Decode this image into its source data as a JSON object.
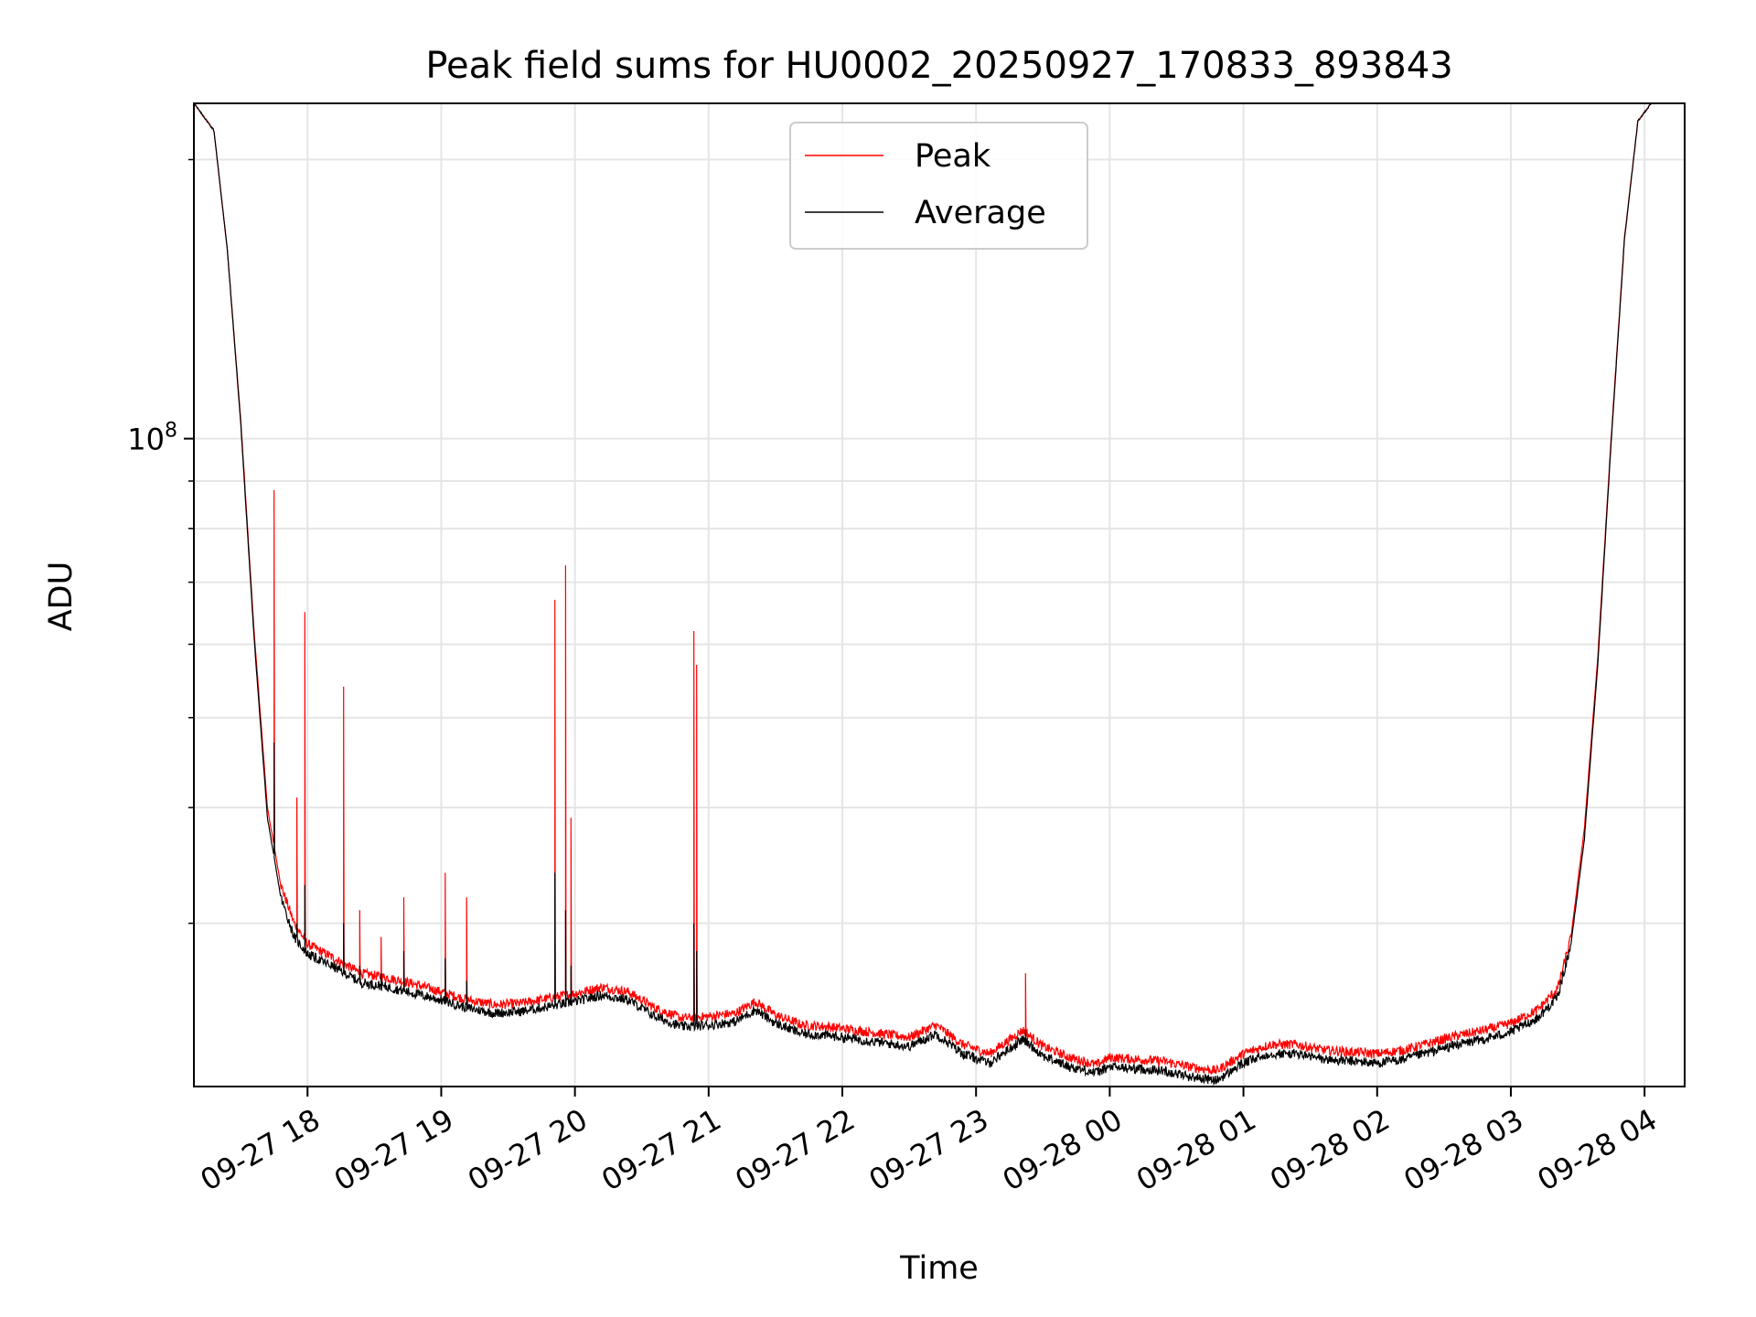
{
  "chart_data": {
    "type": "line",
    "title": "Peak field sums for HU0002_20250927_170833_893843",
    "xlabel": "Time",
    "ylabel": "ADU",
    "yscale": "log",
    "ylim": [
      20000000,
      230000000
    ],
    "xlim": [
      17.15,
      28.3
    ],
    "grid": true,
    "legend_position": "top-center",
    "y_major_ticks": [
      {
        "value": 100000000,
        "base": "10",
        "exp": "8"
      }
    ],
    "y_minor_ticks": [
      30000000,
      40000000,
      50000000,
      60000000,
      70000000,
      80000000,
      90000000,
      200000000
    ],
    "x_ticks": [
      {
        "value": 18,
        "label": "09-27 18"
      },
      {
        "value": 19,
        "label": "09-27 19"
      },
      {
        "value": 20,
        "label": "09-27 20"
      },
      {
        "value": 21,
        "label": "09-27 21"
      },
      {
        "value": 22,
        "label": "09-27 22"
      },
      {
        "value": 23,
        "label": "09-27 23"
      },
      {
        "value": 24,
        "label": "09-28 00"
      },
      {
        "value": 25,
        "label": "09-28 01"
      },
      {
        "value": 26,
        "label": "09-28 02"
      },
      {
        "value": 27,
        "label": "09-28 03"
      },
      {
        "value": 28,
        "label": "09-28 04"
      }
    ],
    "x": [
      17.15,
      17.3,
      17.4,
      17.5,
      17.6,
      17.7,
      17.8,
      17.9,
      18.0,
      18.2,
      18.4,
      18.6,
      18.8,
      19.0,
      19.2,
      19.4,
      19.6,
      19.8,
      20.0,
      20.2,
      20.4,
      20.6,
      20.8,
      21.0,
      21.2,
      21.35,
      21.5,
      21.7,
      21.9,
      22.1,
      22.3,
      22.5,
      22.7,
      22.9,
      23.1,
      23.35,
      23.5,
      23.7,
      23.9,
      24.0,
      24.2,
      24.4,
      24.6,
      24.8,
      25.0,
      25.2,
      25.4,
      25.6,
      25.8,
      26.0,
      26.2,
      26.4,
      26.6,
      26.8,
      27.0,
      27.2,
      27.35,
      27.45,
      27.55,
      27.65,
      27.75,
      27.85,
      27.95,
      28.05
    ],
    "series": [
      {
        "name": "Peak",
        "color": "#ff0000",
        "values": [
          230000000,
          215000000,
          160000000,
          105000000,
          62000000,
          40000000,
          33000000,
          30000000,
          28500000,
          27500000,
          26500000,
          26200000,
          25800000,
          25300000,
          24800000,
          24500000,
          24600000,
          24900000,
          25200000,
          25600000,
          25300000,
          24300000,
          23700000,
          23800000,
          24000000,
          24700000,
          23900000,
          23300000,
          23200000,
          23000000,
          22800000,
          22600000,
          23300000,
          22200000,
          21700000,
          23000000,
          22100000,
          21500000,
          21100000,
          21500000,
          21400000,
          21300000,
          21000000,
          20800000,
          21700000,
          22200000,
          22200000,
          21900000,
          21800000,
          21700000,
          21900000,
          22300000,
          22700000,
          23000000,
          23400000,
          24200000,
          25500000,
          29000000,
          38000000,
          58000000,
          100000000,
          165000000,
          220000000,
          230000000
        ]
      },
      {
        "name": "Average",
        "color": "#000000",
        "values": [
          230000000,
          215000000,
          160000000,
          104000000,
          61000000,
          39000000,
          32000000,
          29000000,
          27800000,
          26900000,
          25900000,
          25600000,
          25200000,
          24800000,
          24300000,
          24000000,
          24100000,
          24400000,
          24700000,
          25100000,
          24800000,
          23800000,
          23200000,
          23300000,
          23500000,
          24200000,
          23400000,
          22800000,
          22700000,
          22500000,
          22300000,
          22100000,
          22800000,
          21700000,
          21200000,
          22500000,
          21600000,
          21000000,
          20700000,
          21000000,
          20900000,
          20800000,
          20500000,
          20300000,
          21200000,
          21700000,
          21700000,
          21400000,
          21300000,
          21200000,
          21400000,
          21800000,
          22200000,
          22500000,
          22900000,
          23700000,
          25000000,
          28500000,
          37000000,
          57000000,
          99000000,
          164000000,
          220000000,
          230000000
        ]
      }
    ],
    "spikes": [
      {
        "x": 17.75,
        "peak": 88000000,
        "average": 47000000
      },
      {
        "x": 17.92,
        "peak": 41000000,
        "average": 30000000
      },
      {
        "x": 17.98,
        "peak": 65000000,
        "average": 33000000
      },
      {
        "x": 18.27,
        "peak": 54000000,
        "average": 30000000
      },
      {
        "x": 18.39,
        "peak": 31000000,
        "average": 27000000
      },
      {
        "x": 18.55,
        "peak": 29000000,
        "average": 26500000
      },
      {
        "x": 18.72,
        "peak": 32000000,
        "average": 28000000
      },
      {
        "x": 19.03,
        "peak": 34000000,
        "average": 27500000
      },
      {
        "x": 19.19,
        "peak": 32000000,
        "average": 26000000
      },
      {
        "x": 19.85,
        "peak": 67000000,
        "average": 34000000
      },
      {
        "x": 19.93,
        "peak": 73000000,
        "average": 31000000
      },
      {
        "x": 19.97,
        "peak": 39000000,
        "average": 27000000
      },
      {
        "x": 20.89,
        "peak": 62000000,
        "average": 30000000
      },
      {
        "x": 20.91,
        "peak": 57000000,
        "average": 28000000
      },
      {
        "x": 23.37,
        "peak": 26500000,
        "average": 23000000
      }
    ]
  }
}
